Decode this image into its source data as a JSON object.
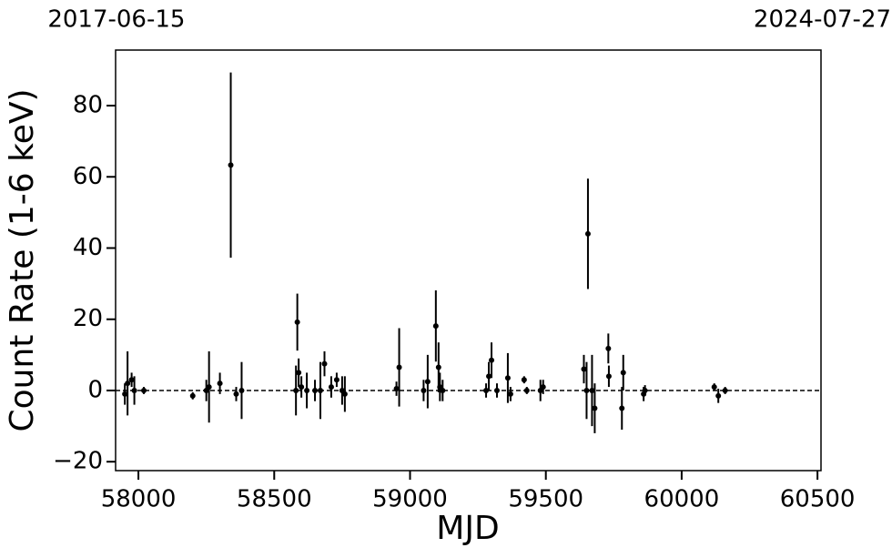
{
  "chart_data": {
    "type": "scatter",
    "xlabel": "MJD",
    "ylabel": "Count Rate (1-6 keV)",
    "xlim": [
      57916,
      60513
    ],
    "ylim": [
      -22.5,
      95.6
    ],
    "xticks": [
      58000,
      58500,
      59000,
      59500,
      60000,
      60500
    ],
    "yticks": [
      {
        "value": -20,
        "label": "−20"
      },
      0,
      20,
      40,
      60,
      80
    ],
    "x2ticks": [
      {
        "value": 57919,
        "label": "2017-06-15"
      },
      {
        "value": 60518,
        "label": "2024-07-27"
      }
    ],
    "hline": 0,
    "color": "#000000",
    "x": [
      57950,
      57960,
      57975,
      57985,
      58020,
      58200,
      58250,
      58260,
      58300,
      58340,
      58360,
      58380,
      58580,
      58585,
      58590,
      58600,
      58620,
      58650,
      58670,
      58685,
      58710,
      58730,
      58750,
      58760,
      58950,
      58960,
      59050,
      59065,
      59095,
      59105,
      59110,
      59120,
      59280,
      59290,
      59300,
      59320,
      59360,
      59370,
      59420,
      59430,
      59480,
      59490,
      59640,
      59650,
      59655,
      59670,
      59680,
      59730,
      59732,
      59780,
      59785,
      59860,
      59865,
      60120,
      60135,
      60160
    ],
    "values": [
      -1,
      2,
      3,
      0,
      0,
      -1.5,
      0,
      1,
      2,
      63.3,
      -1,
      0,
      0,
      19.2,
      5,
      1,
      0,
      0,
      0,
      7.5,
      1,
      3,
      0,
      -1,
      0.5,
      6.5,
      0,
      2.5,
      18.1,
      6.5,
      1,
      0,
      0,
      4,
      8.5,
      0,
      3.5,
      -1,
      3,
      0,
      0,
      1,
      6,
      0,
      44,
      0,
      -5,
      11.8,
      4,
      -5,
      5,
      -1,
      0,
      1,
      -1.5,
      0
    ],
    "errors": [
      3,
      9,
      2,
      4,
      1,
      1,
      3,
      10,
      3,
      26,
      2,
      8,
      7,
      8,
      4,
      3,
      5,
      3,
      8,
      3.5,
      3,
      2,
      4,
      5,
      2,
      11,
      3,
      7.5,
      10,
      7,
      4,
      3,
      2,
      4,
      5,
      2,
      7,
      2,
      1,
      1,
      3,
      2,
      4,
      8,
      15.5,
      10,
      7,
      4.2,
      3,
      6,
      5,
      2,
      1.5,
      1,
      2,
      1
    ]
  }
}
